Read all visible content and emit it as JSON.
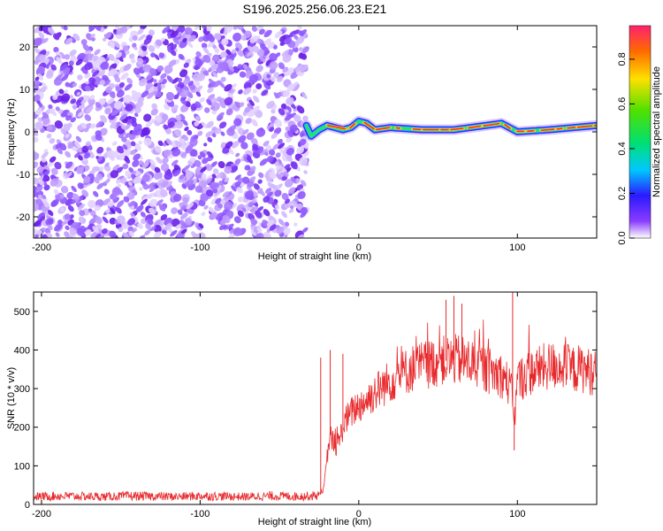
{
  "title": "S196.2025.256.06.23.E21",
  "chart_data": [
    {
      "type": "heatmap",
      "xlabel": "Height of straight line (km)",
      "ylabel": "Frequency (Hz)",
      "xlim": [
        -205,
        150
      ],
      "ylim": [
        -25,
        25
      ],
      "xticks": [
        -200,
        -100,
        0,
        100
      ],
      "yticks": [
        -20,
        -10,
        0,
        10,
        20
      ],
      "grid": false,
      "noise_region_x": [
        -205,
        -33
      ],
      "signal_track": [
        {
          "x": -33,
          "y": 1.5
        },
        {
          "x": -30,
          "y": -1.0
        },
        {
          "x": -25,
          "y": 0.5
        },
        {
          "x": -20,
          "y": 1.5
        },
        {
          "x": -10,
          "y": 0.5
        },
        {
          "x": -5,
          "y": 1.0
        },
        {
          "x": 0,
          "y": 2.5
        },
        {
          "x": 5,
          "y": 2.0
        },
        {
          "x": 10,
          "y": 0.5
        },
        {
          "x": 20,
          "y": 1.0
        },
        {
          "x": 40,
          "y": 0.5
        },
        {
          "x": 60,
          "y": 0.5
        },
        {
          "x": 80,
          "y": 1.5
        },
        {
          "x": 90,
          "y": 2.0
        },
        {
          "x": 100,
          "y": 0.0
        },
        {
          "x": 120,
          "y": 0.5
        },
        {
          "x": 150,
          "y": 1.5
        }
      ],
      "colorbar": {
        "label": "Normalized spectral amplitude",
        "range": [
          0.0,
          0.95
        ],
        "ticks": [
          "0.0",
          "0.2",
          "0.4",
          "0.6",
          "0.8"
        ]
      }
    },
    {
      "type": "line",
      "xlabel": "Height of straight line (km)",
      "ylabel": "SNR (10 * v/v)",
      "xlim": [
        -205,
        150
      ],
      "ylim": [
        0,
        550
      ],
      "xticks": [
        -200,
        -100,
        0,
        100
      ],
      "yticks": [
        0,
        100,
        200,
        300,
        400,
        500
      ],
      "grid": false,
      "color": "#e8282b",
      "series": [
        {
          "x": [
            -205,
            -190,
            -175,
            -160,
            -145,
            -130,
            -115,
            -100,
            -85,
            -70,
            -55,
            -40,
            -30,
            -25,
            -22,
            -20,
            -18,
            -16,
            -14,
            -12,
            -10,
            -8,
            -6,
            -4,
            -2,
            0,
            5,
            10,
            15,
            20,
            25,
            30,
            35,
            40,
            45,
            50,
            55,
            60,
            65,
            70,
            75,
            80,
            85,
            90,
            93,
            96,
            98,
            100,
            105,
            110,
            115,
            120,
            125,
            130,
            135,
            140,
            145,
            150
          ],
          "values": [
            20,
            22,
            21,
            20,
            22,
            21,
            20,
            22,
            21,
            20,
            22,
            21,
            22,
            25,
            40,
            120,
            180,
            160,
            150,
            170,
            200,
            220,
            230,
            240,
            250,
            255,
            270,
            290,
            305,
            320,
            335,
            345,
            355,
            360,
            365,
            370,
            372,
            375,
            372,
            368,
            360,
            350,
            342,
            335,
            320,
            300,
            210,
            320,
            335,
            345,
            352,
            358,
            360,
            355,
            350,
            352,
            345,
            340
          ]
        }
      ],
      "spikes": [
        {
          "x": -24,
          "y": 380
        },
        {
          "x": -18,
          "y": 400
        },
        {
          "x": -10,
          "y": 390
        },
        {
          "x": 55,
          "y": 530
        },
        {
          "x": 60,
          "y": 540
        },
        {
          "x": 65,
          "y": 520
        },
        {
          "x": 97,
          "y": 550
        },
        {
          "x": 98,
          "y": 140
        }
      ]
    }
  ]
}
